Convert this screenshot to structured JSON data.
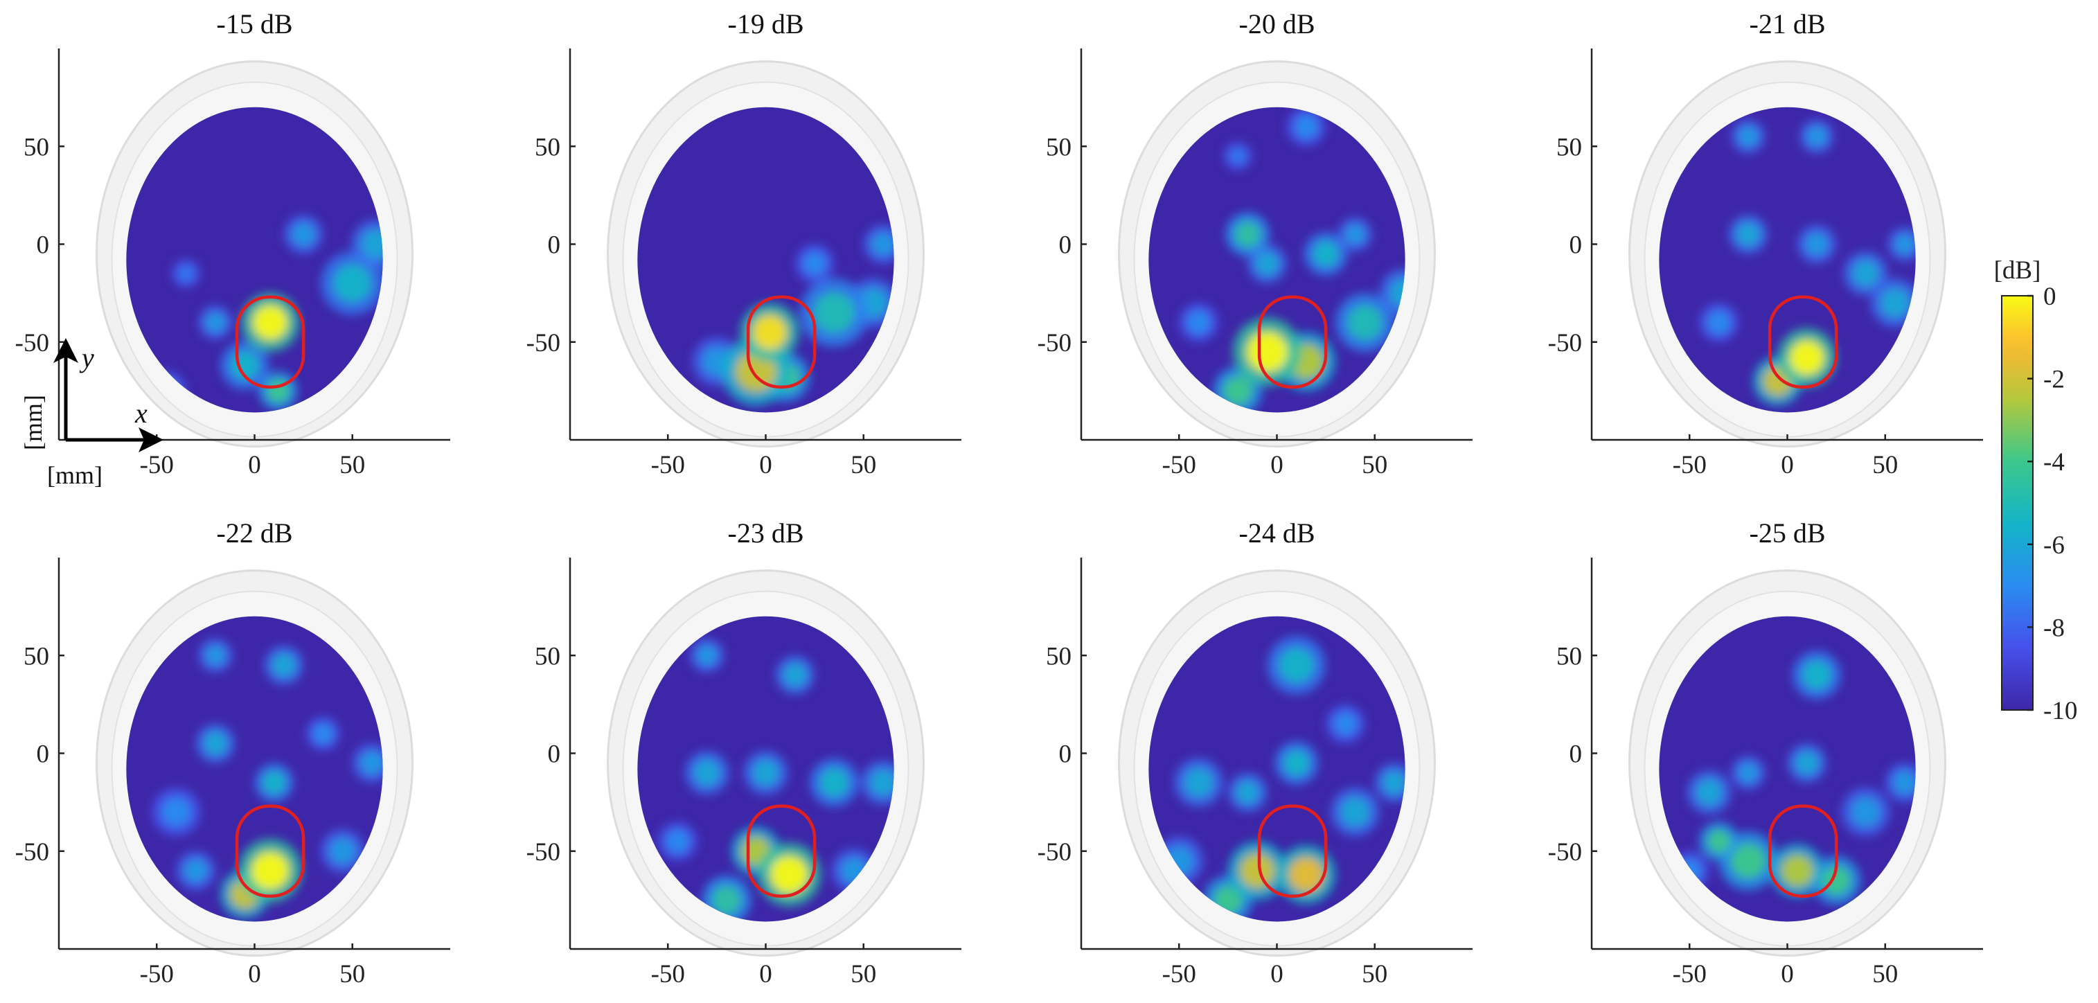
{
  "chart_data": {
    "type": "heatmap",
    "colormap": "parula",
    "colorbar": {
      "label": "[dB]",
      "range": [
        -10,
        0
      ],
      "ticks": [
        "0",
        "-2",
        "-4",
        "-6",
        "-8",
        "-10"
      ]
    },
    "axes": {
      "x_ticks": [
        "-50",
        "0",
        "50"
      ],
      "y_ticks": [
        "50",
        "0",
        "-50"
      ],
      "x_name": "x",
      "y_name": "y",
      "x_unit": "[mm]",
      "y_unit": "[mm]",
      "x_range": [
        -100,
        100
      ],
      "y_range": [
        -100,
        100
      ]
    },
    "roi_color": "#e02020",
    "roi_center_mm": [
      8,
      -50
    ],
    "panels": [
      {
        "title": "-15 dB",
        "hotspots": [
          [
            8,
            -40,
            1.0,
            12
          ],
          [
            12,
            -75,
            0.6,
            8
          ],
          [
            -5,
            -62,
            0.45,
            10
          ],
          [
            50,
            -20,
            0.45,
            13
          ],
          [
            62,
            0,
            0.4,
            10
          ],
          [
            25,
            5,
            0.35,
            8
          ],
          [
            -35,
            -15,
            0.25,
            6
          ],
          [
            -20,
            -40,
            0.35,
            7
          ],
          [
            -45,
            -75,
            0.3,
            8
          ]
        ]
      },
      {
        "title": "-19 dB",
        "hotspots": [
          [
            2,
            -45,
            0.95,
            12
          ],
          [
            -5,
            -65,
            0.8,
            14
          ],
          [
            10,
            -68,
            0.6,
            10
          ],
          [
            35,
            -35,
            0.5,
            14
          ],
          [
            55,
            -30,
            0.4,
            10
          ],
          [
            60,
            0,
            0.35,
            8
          ],
          [
            25,
            -10,
            0.3,
            8
          ],
          [
            -25,
            -60,
            0.35,
            10
          ]
        ]
      },
      {
        "title": "-20 dB",
        "hotspots": [
          [
            -5,
            -55,
            1.0,
            14
          ],
          [
            15,
            -60,
            0.75,
            12
          ],
          [
            -20,
            -75,
            0.6,
            10
          ],
          [
            -15,
            5,
            0.55,
            9
          ],
          [
            25,
            -5,
            0.45,
            9
          ],
          [
            15,
            60,
            0.3,
            8
          ],
          [
            -5,
            -10,
            0.4,
            8
          ],
          [
            45,
            -40,
            0.5,
            12
          ],
          [
            65,
            -25,
            0.4,
            10
          ],
          [
            40,
            5,
            0.35,
            7
          ],
          [
            -20,
            45,
            0.25,
            6
          ],
          [
            -40,
            -40,
            0.3,
            8
          ]
        ]
      },
      {
        "title": "-21 dB",
        "hotspots": [
          [
            10,
            -58,
            1.0,
            12
          ],
          [
            -5,
            -70,
            0.8,
            10
          ],
          [
            -20,
            55,
            0.35,
            7
          ],
          [
            15,
            55,
            0.35,
            7
          ],
          [
            -20,
            5,
            0.4,
            8
          ],
          [
            15,
            0,
            0.35,
            8
          ],
          [
            40,
            -15,
            0.4,
            9
          ],
          [
            55,
            -30,
            0.4,
            10
          ],
          [
            -35,
            -40,
            0.3,
            8
          ],
          [
            60,
            0,
            0.35,
            7
          ]
        ]
      },
      {
        "title": "-22 dB",
        "hotspots": [
          [
            8,
            -60,
            1.0,
            13
          ],
          [
            -5,
            -72,
            0.8,
            10
          ],
          [
            -20,
            50,
            0.35,
            7
          ],
          [
            15,
            45,
            0.4,
            8
          ],
          [
            -20,
            5,
            0.4,
            8
          ],
          [
            10,
            -15,
            0.45,
            8
          ],
          [
            35,
            10,
            0.3,
            7
          ],
          [
            -40,
            -30,
            0.3,
            10
          ],
          [
            -30,
            -60,
            0.35,
            8
          ],
          [
            45,
            -50,
            0.35,
            9
          ],
          [
            55,
            -70,
            0.3,
            6
          ],
          [
            60,
            -5,
            0.35,
            8
          ]
        ]
      },
      {
        "title": "-23 dB",
        "hotspots": [
          [
            12,
            -62,
            1.0,
            13
          ],
          [
            -5,
            -50,
            0.75,
            10
          ],
          [
            -20,
            -75,
            0.55,
            10
          ],
          [
            -30,
            50,
            0.35,
            7
          ],
          [
            15,
            40,
            0.4,
            8
          ],
          [
            -30,
            -10,
            0.4,
            9
          ],
          [
            0,
            -10,
            0.4,
            9
          ],
          [
            35,
            -15,
            0.45,
            10
          ],
          [
            60,
            -15,
            0.4,
            9
          ],
          [
            45,
            -60,
            0.35,
            9
          ],
          [
            -45,
            -45,
            0.3,
            8
          ]
        ]
      },
      {
        "title": "-24 dB",
        "hotspots": [
          [
            15,
            -62,
            0.85,
            12
          ],
          [
            -10,
            -60,
            0.8,
            12
          ],
          [
            -25,
            -75,
            0.6,
            10
          ],
          [
            10,
            45,
            0.45,
            12
          ],
          [
            10,
            -5,
            0.45,
            9
          ],
          [
            -40,
            -15,
            0.4,
            10
          ],
          [
            -15,
            -20,
            0.4,
            8
          ],
          [
            40,
            -30,
            0.4,
            10
          ],
          [
            60,
            -15,
            0.4,
            8
          ],
          [
            35,
            15,
            0.3,
            8
          ],
          [
            -50,
            -55,
            0.35,
            10
          ]
        ]
      },
      {
        "title": "-25 dB",
        "hotspots": [
          [
            5,
            -60,
            0.75,
            11
          ],
          [
            -20,
            -55,
            0.6,
            12
          ],
          [
            25,
            -65,
            0.6,
            10
          ],
          [
            -35,
            -45,
            0.6,
            8
          ],
          [
            15,
            40,
            0.45,
            10
          ],
          [
            10,
            -5,
            0.4,
            8
          ],
          [
            -40,
            -20,
            0.4,
            9
          ],
          [
            -20,
            -10,
            0.35,
            7
          ],
          [
            40,
            -30,
            0.35,
            10
          ],
          [
            60,
            -15,
            0.35,
            8
          ],
          [
            -50,
            -60,
            0.3,
            8
          ]
        ]
      }
    ]
  }
}
